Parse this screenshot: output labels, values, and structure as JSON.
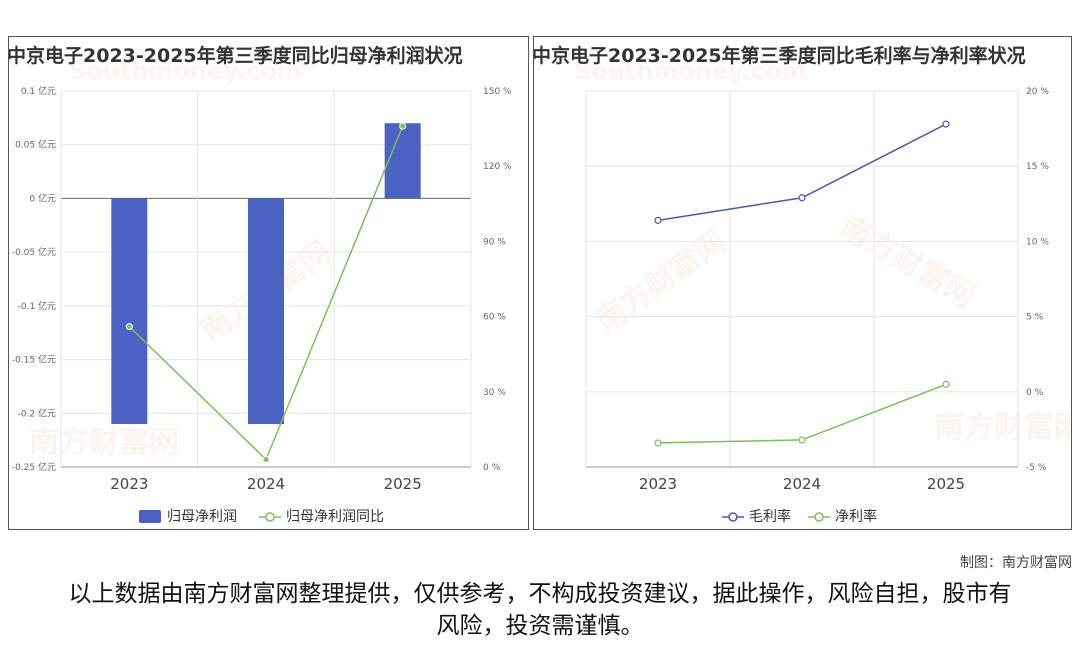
{
  "credit": "制图：南方财富网",
  "disclaimer": "以上数据由南方财富网整理提供，仅供参考，不构成投资建议，据此操作，风险自担，股市有风险，投资需谨慎。",
  "watermark": "南方财富网",
  "watermark_en": "Southmoney.com",
  "colors": {
    "bar": "#4a62c1",
    "line_green": "#7cc05a",
    "line_blue": "#4a5aa8",
    "grid": "#e6e6e6"
  },
  "chart_data": [
    {
      "type": "bar",
      "title": "中京电子2023-2025年第三季度同比归母净利润状况",
      "categories": [
        "2023",
        "2024",
        "2025"
      ],
      "series": [
        {
          "name": "归母净利润",
          "type": "bar",
          "axis": "left",
          "values": [
            -0.21,
            -0.21,
            0.07
          ]
        },
        {
          "name": "归母净利润同比",
          "type": "line",
          "axis": "right",
          "values": [
            56,
            3,
            136
          ]
        }
      ],
      "y_left": {
        "min": -0.25,
        "max": 0.1,
        "ticks": [
          "0.1 亿元",
          "0.05 亿元",
          "0 亿元",
          "-0.05 亿元",
          "-0.1 亿元",
          "-0.15 亿元",
          "-0.2 亿元",
          "-0.25 亿元"
        ],
        "tick_values": [
          0.1,
          0.05,
          0,
          -0.05,
          -0.1,
          -0.15,
          -0.2,
          -0.25
        ]
      },
      "y_right": {
        "min": 0,
        "max": 150,
        "ticks": [
          "150 %",
          "120 %",
          "90 %",
          "60 %",
          "30 %",
          "0 %"
        ],
        "tick_values": [
          150,
          120,
          90,
          60,
          30,
          0
        ]
      },
      "grid": true,
      "legend_position": "bottom"
    },
    {
      "type": "line",
      "title": "中京电子2023-2025年第三季度同比毛利率与净利率状况",
      "categories": [
        "2023",
        "2024",
        "2025"
      ],
      "series": [
        {
          "name": "毛利率",
          "values": [
            11.4,
            12.9,
            17.8
          ]
        },
        {
          "name": "净利率",
          "values": [
            -3.4,
            -3.2,
            0.5
          ]
        }
      ],
      "y_right": {
        "min": -5,
        "max": 20,
        "ticks": [
          "20 %",
          "15 %",
          "10 %",
          "5 %",
          "0 %",
          "-5 %"
        ],
        "tick_values": [
          20,
          15,
          10,
          5,
          0,
          -5
        ]
      },
      "grid": true,
      "legend_position": "bottom"
    }
  ]
}
